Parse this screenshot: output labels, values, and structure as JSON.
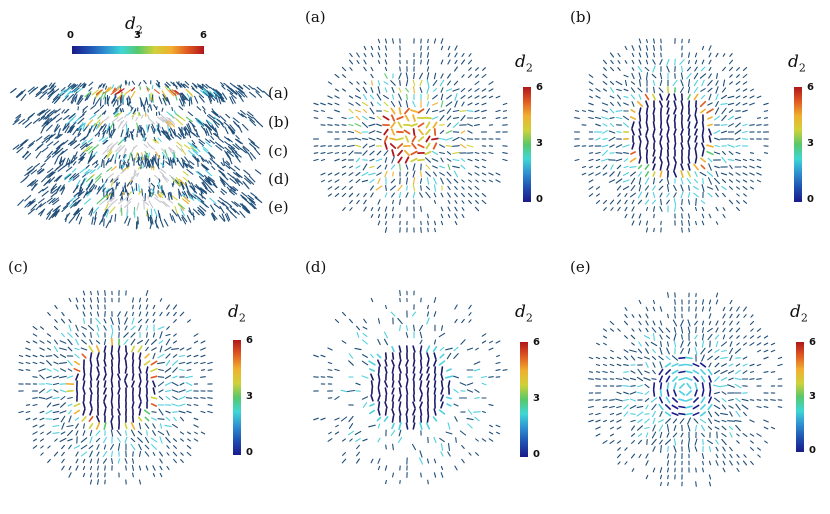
{
  "colorbar": {
    "title": "d",
    "title_sub": "2",
    "ticks": [
      "0",
      "3",
      "6"
    ],
    "gradient": [
      "#1a1a8a",
      "#1f4fb0",
      "#2f8fd0",
      "#3fd6d6",
      "#57c86a",
      "#cfd13a",
      "#f0b030",
      "#e05a22",
      "#b0161a"
    ]
  },
  "overview": {
    "labels": [
      "(a)",
      "(b)",
      "(c)",
      "(d)",
      "(e)"
    ]
  },
  "panels": [
    {
      "label": "(a)",
      "core": "red"
    },
    {
      "label": "(b)",
      "core": "ring"
    },
    {
      "label": "(c)",
      "core": "ring"
    },
    {
      "label": "(d)",
      "core": "dark"
    },
    {
      "label": "(e)",
      "core": "swirl"
    }
  ],
  "colors": {
    "vector": "#1f4e79",
    "cyan": "#4fd0e0"
  }
}
